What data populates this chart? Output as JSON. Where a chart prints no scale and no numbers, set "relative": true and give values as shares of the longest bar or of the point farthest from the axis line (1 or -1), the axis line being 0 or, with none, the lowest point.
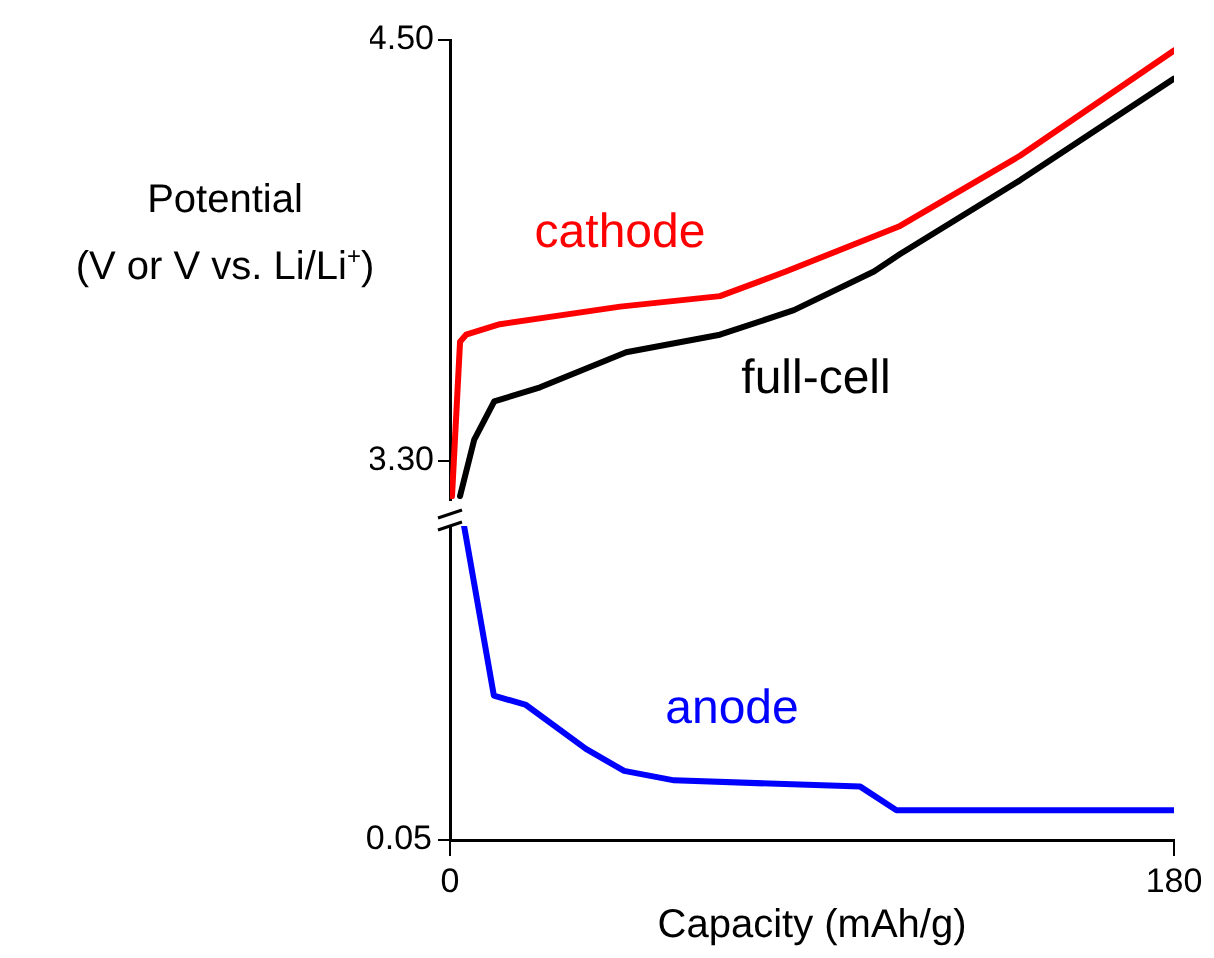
{
  "chart_data": [
    {
      "type": "line",
      "ylabel": "Potential\n(V or V vs. Li/Li$^{+}$)",
      "xlim": [
        0,
        180
      ],
      "ylim": [
        3.19,
        4.5
      ],
      "yticks": [
        {
          "value": 3.3,
          "label": "3.30"
        },
        {
          "value": 4.5,
          "label": "4.50"
        }
      ],
      "tick_labels": "y",
      "grid": false,
      "legend": false,
      "series": [
        {
          "name": "cathode",
          "color": "#ff0000",
          "x": [
            0.5,
            2.5,
            4,
            12.4,
            42.3,
            67.1,
            83.5,
            111.9,
            141.7,
            180
          ],
          "values": [
            3.2,
            3.64,
            3.66,
            3.69,
            3.74,
            3.77,
            3.84,
            3.97,
            4.17,
            4.47
          ]
        },
        {
          "name": "full-cell",
          "color": "#000000",
          "x": [
            2.5,
            6,
            11,
            22.4,
            43.8,
            67.1,
            85.5,
            105.4,
            111.9,
            141.7,
            180
          ],
          "values": [
            3.2,
            3.36,
            3.47,
            3.51,
            3.61,
            3.66,
            3.73,
            3.84,
            3.89,
            4.1,
            4.39
          ]
        }
      ]
    },
    {
      "type": "line",
      "xlabel": "Capacity (mAh/g)",
      "xlim": [
        0,
        180
      ],
      "xticks": [
        0,
        180
      ],
      "relative": true,
      "annotations": [
        "0.05"
      ],
      "grid": false,
      "legend": false,
      "series": [
        {
          "name": "anode",
          "color": "#0000ff",
          "x": [
            3.5,
            10.9,
            18.9,
            33.8,
            43.3,
            55.7,
            102,
            111,
            180
          ],
          "values": [
            1,
            0.46,
            0.43,
            0.29,
            0.22,
            0.19,
            0.17,
            0.095,
            0.095
          ]
        }
      ]
    }
  ]
}
